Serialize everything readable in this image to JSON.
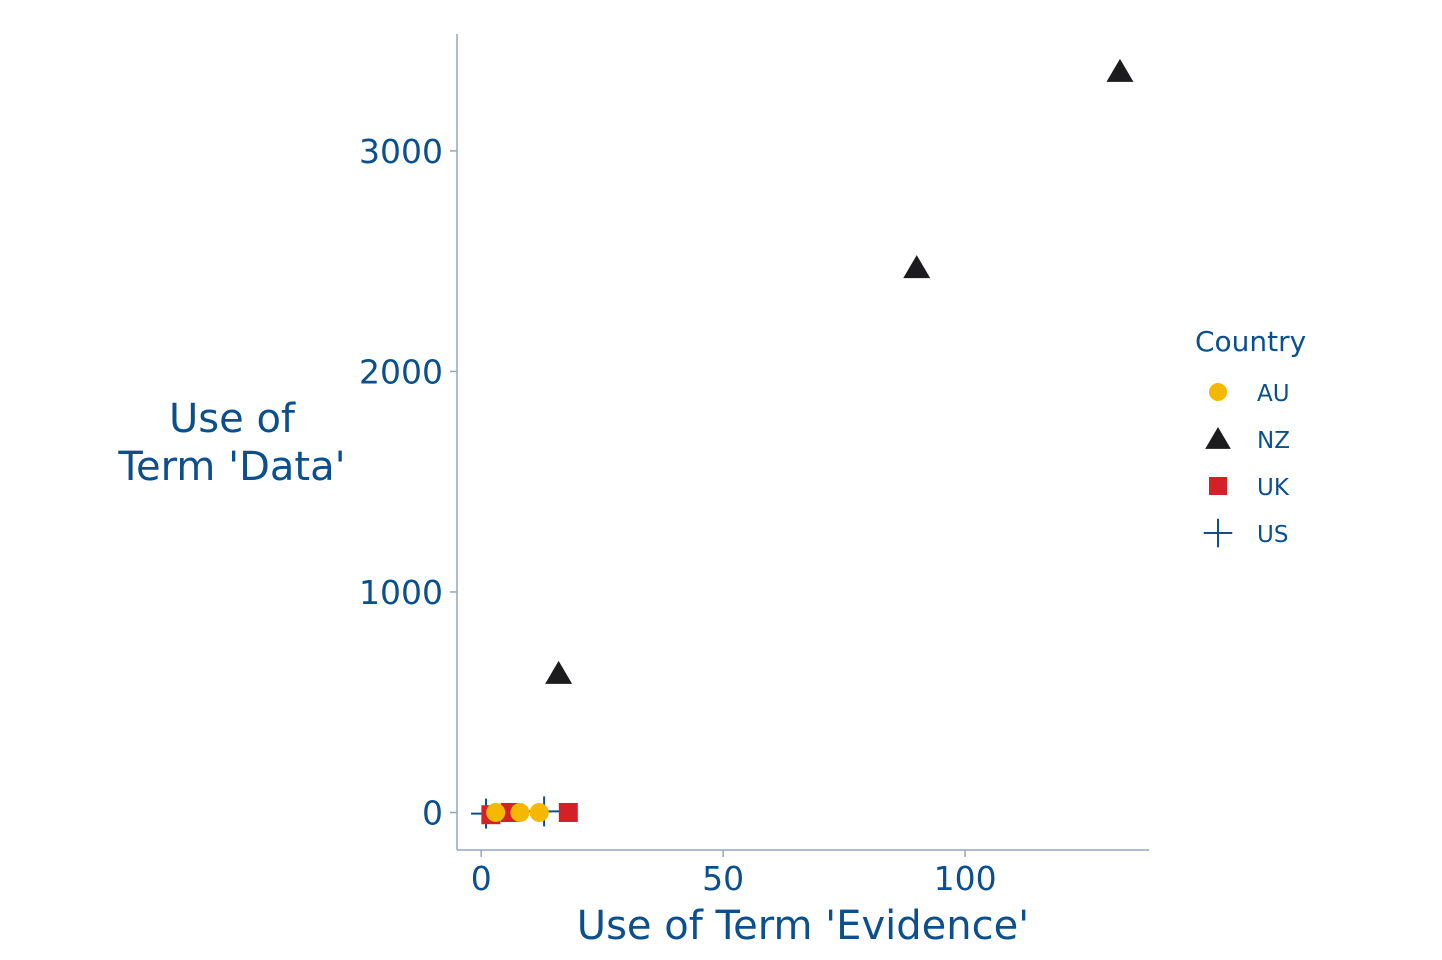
{
  "colors": {
    "text": "#0b4f8c",
    "axis": "#8fa7bf",
    "AU": "#f5b800",
    "NZ": "#1c1c1e",
    "UK": "#d42027",
    "US": "#0b4f8c"
  },
  "chart_data": {
    "type": "scatter",
    "title": "",
    "xlabel": "Use of Term 'Evidence'",
    "ylabel_lines": [
      "Use of",
      "Term 'Data'"
    ],
    "xlim": [
      -5,
      138
    ],
    "ylim": [
      -170,
      3530
    ],
    "x_ticks": [
      0,
      50,
      100
    ],
    "y_ticks": [
      0,
      1000,
      2000,
      3000
    ],
    "grid": false,
    "legend": {
      "title": "Country",
      "placement": "right",
      "entries": [
        {
          "name": "AU",
          "shape": "circle"
        },
        {
          "name": "NZ",
          "shape": "triangle"
        },
        {
          "name": "UK",
          "shape": "square"
        },
        {
          "name": "US",
          "shape": "plus"
        }
      ]
    },
    "series": [
      {
        "name": "AU",
        "shape": "circle",
        "points": [
          [
            3,
            0
          ],
          [
            8,
            0
          ],
          [
            12,
            0
          ]
        ]
      },
      {
        "name": "NZ",
        "shape": "triangle",
        "points": [
          [
            16,
            630
          ],
          [
            90,
            2470
          ],
          [
            132,
            3360
          ]
        ]
      },
      {
        "name": "UK",
        "shape": "square",
        "points": [
          [
            2,
            -10
          ],
          [
            6,
            0
          ],
          [
            18,
            0
          ]
        ]
      },
      {
        "name": "US",
        "shape": "plus",
        "points": [
          [
            1,
            -5
          ],
          [
            13,
            5
          ]
        ]
      }
    ]
  }
}
